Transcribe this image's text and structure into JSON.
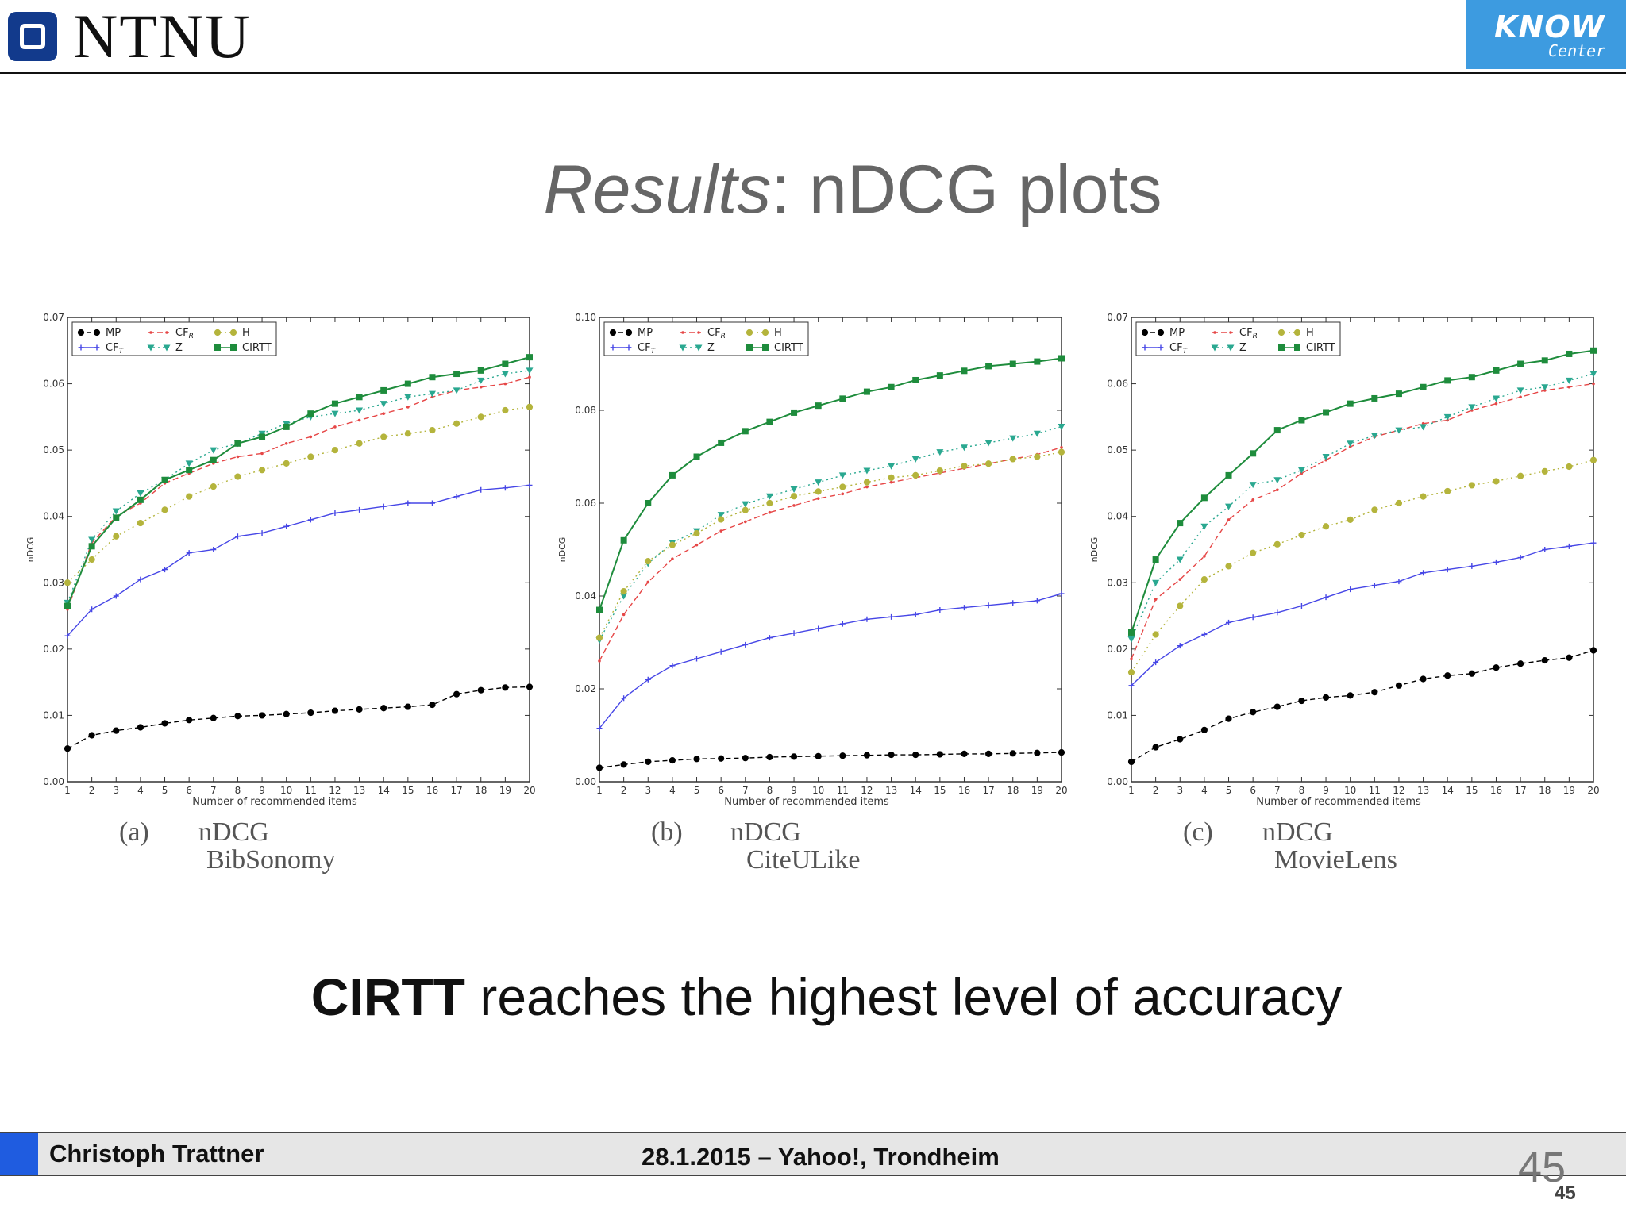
{
  "header": {
    "left_logo_text": "NTNU",
    "right_logo_word": "KNOW",
    "right_logo_sub": "Center"
  },
  "title": {
    "italic": "Results",
    "rest": ": nDCG plots"
  },
  "colors": {
    "MP": "#000000",
    "CF_T": "#4646e6",
    "CF_R": "#e64646",
    "Z": "#2aa890",
    "H": "#b4b43c",
    "CIRTT": "#1e8c3c"
  },
  "chart_data": [
    {
      "type": "line",
      "caption_letter": "(a)",
      "caption_metric": "nDCG",
      "caption_dataset": "BibSonomy",
      "ylabel": "nDCG",
      "xlabel": "Number of recommended items",
      "ylim": [
        0,
        0.07
      ],
      "yticks": [
        "0.00",
        "0.01",
        "0.02",
        "0.03",
        "0.04",
        "0.05",
        "0.06",
        "0.07"
      ],
      "x": [
        1,
        2,
        3,
        4,
        5,
        6,
        7,
        8,
        9,
        10,
        11,
        12,
        13,
        14,
        15,
        16,
        17,
        18,
        19,
        20
      ],
      "legend": {
        "position": "top-left",
        "entries": [
          "MP",
          "CF_T",
          "CF_R",
          "Z",
          "H",
          "CIRTT"
        ]
      },
      "series": [
        {
          "name": "MP",
          "values": [
            0.005,
            0.007,
            0.0077,
            0.0082,
            0.0088,
            0.0093,
            0.0096,
            0.0099,
            0.01,
            0.0102,
            0.0104,
            0.0107,
            0.0109,
            0.0111,
            0.0113,
            0.0116,
            0.0132,
            0.0138,
            0.0142,
            0.0143
          ]
        },
        {
          "name": "CF_T",
          "values": [
            0.022,
            0.026,
            0.028,
            0.0305,
            0.032,
            0.0345,
            0.035,
            0.037,
            0.0375,
            0.0385,
            0.0395,
            0.0405,
            0.041,
            0.0415,
            0.042,
            0.042,
            0.043,
            0.044,
            0.0443,
            0.0447
          ]
        },
        {
          "name": "CF_R",
          "values": [
            0.026,
            0.036,
            0.04,
            0.042,
            0.045,
            0.0465,
            0.048,
            0.049,
            0.0495,
            0.051,
            0.052,
            0.0535,
            0.0545,
            0.0555,
            0.0565,
            0.058,
            0.059,
            0.0595,
            0.06,
            0.061
          ]
        },
        {
          "name": "Z",
          "values": [
            0.027,
            0.0365,
            0.0408,
            0.0435,
            0.0455,
            0.048,
            0.05,
            0.051,
            0.0525,
            0.054,
            0.055,
            0.0555,
            0.056,
            0.057,
            0.058,
            0.0585,
            0.059,
            0.0605,
            0.0615,
            0.062
          ]
        },
        {
          "name": "H",
          "values": [
            0.03,
            0.0335,
            0.037,
            0.039,
            0.041,
            0.043,
            0.0445,
            0.046,
            0.047,
            0.048,
            0.049,
            0.05,
            0.051,
            0.052,
            0.0525,
            0.053,
            0.054,
            0.055,
            0.056,
            0.0565
          ]
        },
        {
          "name": "CIRTT",
          "values": [
            0.0265,
            0.0355,
            0.0398,
            0.0425,
            0.0455,
            0.047,
            0.0485,
            0.051,
            0.052,
            0.0535,
            0.0555,
            0.057,
            0.058,
            0.059,
            0.06,
            0.061,
            0.0615,
            0.062,
            0.063,
            0.064
          ]
        }
      ]
    },
    {
      "type": "line",
      "caption_letter": "(b)",
      "caption_metric": "nDCG",
      "caption_dataset": "CiteULike",
      "ylabel": "nDCG",
      "xlabel": "Number of recommended items",
      "ylim": [
        0,
        0.1
      ],
      "yticks": [
        "0.00",
        "0.02",
        "0.04",
        "0.06",
        "0.08",
        "0.10"
      ],
      "x": [
        1,
        2,
        3,
        4,
        5,
        6,
        7,
        8,
        9,
        10,
        11,
        12,
        13,
        14,
        15,
        16,
        17,
        18,
        19,
        20
      ],
      "legend": {
        "position": "top-left",
        "entries": [
          "MP",
          "CF_T",
          "CF_R",
          "Z",
          "H",
          "CIRTT"
        ]
      },
      "series": [
        {
          "name": "MP",
          "values": [
            0.003,
            0.0037,
            0.0043,
            0.0046,
            0.0049,
            0.005,
            0.0051,
            0.0053,
            0.0054,
            0.0055,
            0.0056,
            0.0057,
            0.0058,
            0.0058,
            0.0059,
            0.006,
            0.006,
            0.0061,
            0.0062,
            0.0063
          ]
        },
        {
          "name": "CF_T",
          "values": [
            0.0115,
            0.018,
            0.022,
            0.025,
            0.0265,
            0.028,
            0.0295,
            0.031,
            0.032,
            0.033,
            0.034,
            0.035,
            0.0355,
            0.036,
            0.037,
            0.0375,
            0.038,
            0.0385,
            0.039,
            0.0405
          ]
        },
        {
          "name": "CF_R",
          "values": [
            0.026,
            0.036,
            0.043,
            0.048,
            0.051,
            0.054,
            0.056,
            0.058,
            0.0595,
            0.061,
            0.062,
            0.0635,
            0.0645,
            0.0655,
            0.0665,
            0.0675,
            0.0685,
            0.0695,
            0.0705,
            0.072
          ]
        },
        {
          "name": "Z",
          "values": [
            0.0305,
            0.04,
            0.047,
            0.0515,
            0.054,
            0.0575,
            0.0598,
            0.0615,
            0.063,
            0.0645,
            0.066,
            0.067,
            0.068,
            0.0695,
            0.071,
            0.072,
            0.073,
            0.074,
            0.075,
            0.0765
          ]
        },
        {
          "name": "H",
          "values": [
            0.031,
            0.041,
            0.0475,
            0.051,
            0.0535,
            0.0565,
            0.0585,
            0.06,
            0.0615,
            0.0625,
            0.0635,
            0.0645,
            0.0655,
            0.066,
            0.067,
            0.068,
            0.0685,
            0.0695,
            0.07,
            0.071
          ]
        },
        {
          "name": "CIRTT",
          "values": [
            0.037,
            0.052,
            0.06,
            0.066,
            0.07,
            0.073,
            0.0755,
            0.0775,
            0.0795,
            0.081,
            0.0825,
            0.084,
            0.085,
            0.0865,
            0.0875,
            0.0885,
            0.0895,
            0.09,
            0.0905,
            0.0912
          ]
        }
      ]
    },
    {
      "type": "line",
      "caption_letter": "(c)",
      "caption_metric": "nDCG",
      "caption_dataset": "MovieLens",
      "ylabel": "nDCG",
      "xlabel": "Number of recommended items",
      "ylim": [
        0,
        0.07
      ],
      "yticks": [
        "0.00",
        "0.01",
        "0.02",
        "0.03",
        "0.04",
        "0.05",
        "0.06",
        "0.07"
      ],
      "x": [
        1,
        2,
        3,
        4,
        5,
        6,
        7,
        8,
        9,
        10,
        11,
        12,
        13,
        14,
        15,
        16,
        17,
        18,
        19,
        20
      ],
      "legend": {
        "position": "top-left",
        "entries": [
          "MP",
          "CF_T",
          "CF_R",
          "Z",
          "H",
          "CIRTT"
        ]
      },
      "series": [
        {
          "name": "MP",
          "values": [
            0.003,
            0.0052,
            0.0064,
            0.0078,
            0.0095,
            0.0105,
            0.0113,
            0.0122,
            0.0127,
            0.013,
            0.0135,
            0.0145,
            0.0155,
            0.016,
            0.0163,
            0.0172,
            0.0178,
            0.0183,
            0.0187,
            0.0198
          ]
        },
        {
          "name": "CF_T",
          "values": [
            0.0145,
            0.018,
            0.0205,
            0.0222,
            0.024,
            0.0248,
            0.0255,
            0.0265,
            0.0278,
            0.029,
            0.0296,
            0.0302,
            0.0315,
            0.032,
            0.0325,
            0.0331,
            0.0338,
            0.035,
            0.0355,
            0.036
          ]
        },
        {
          "name": "CF_R",
          "values": [
            0.0185,
            0.0275,
            0.0305,
            0.034,
            0.0395,
            0.0425,
            0.044,
            0.0465,
            0.0485,
            0.0505,
            0.052,
            0.053,
            0.054,
            0.0545,
            0.056,
            0.057,
            0.058,
            0.059,
            0.0595,
            0.06
          ]
        },
        {
          "name": "Z",
          "values": [
            0.0215,
            0.03,
            0.0335,
            0.0385,
            0.0415,
            0.0448,
            0.0455,
            0.047,
            0.049,
            0.051,
            0.0522,
            0.053,
            0.0535,
            0.055,
            0.0565,
            0.0578,
            0.059,
            0.0595,
            0.0605,
            0.0615
          ]
        },
        {
          "name": "H",
          "values": [
            0.0165,
            0.0222,
            0.0265,
            0.0305,
            0.0325,
            0.0345,
            0.0358,
            0.0372,
            0.0385,
            0.0395,
            0.041,
            0.042,
            0.043,
            0.0438,
            0.0447,
            0.0453,
            0.0461,
            0.0468,
            0.0475,
            0.0485
          ]
        },
        {
          "name": "CIRTT",
          "values": [
            0.0225,
            0.0335,
            0.039,
            0.0428,
            0.0462,
            0.0495,
            0.053,
            0.0545,
            0.0557,
            0.057,
            0.0578,
            0.0585,
            0.0595,
            0.0605,
            0.061,
            0.062,
            0.063,
            0.0635,
            0.0645,
            0.065
          ]
        }
      ]
    }
  ],
  "conclusion": {
    "bold": "CIRTT",
    "rest": " reaches the highest level of accuracy"
  },
  "footer": {
    "author": "Christoph Trattner",
    "event": "28.1.2015 – Yahoo!, Trondheim",
    "slide_number": "45",
    "slide_number_small": "45"
  }
}
